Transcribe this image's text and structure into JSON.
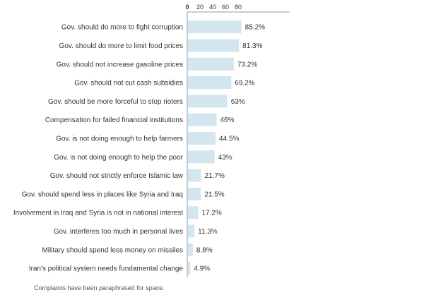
{
  "chart_data": {
    "type": "bar",
    "orientation": "horizontal",
    "categories": [
      "Gov. should do more to fight corruption",
      "Gov. should do more to limit food prices",
      "Gov. should not increase gasoline prices",
      "Gov. should not cut cash subsidies",
      "Gov. should be more forceful to stop rioters",
      "Compensation for failed financial institutions",
      "Gov. is not doing enough to help farmers",
      "Gov. is not doing enough to help the poor",
      "Gov. should not strictly enforce Islamic law",
      "Gov. should spend less in places like Syria and Iraq",
      "Involvement in Iraq and Syria is not in national interest",
      "Gov. interferes too much in personal lives",
      "Military should spend less money on missiles",
      "Iran's political system needs fundamental change"
    ],
    "values": [
      85.2,
      81.3,
      73.2,
      69.2,
      63,
      46,
      44.5,
      43,
      21.7,
      21.5,
      17.2,
      11.3,
      8.8,
      4.9
    ],
    "value_labels": [
      "85.2%",
      "81.3%",
      "73.2%",
      "69.2%",
      "63%",
      "46%",
      "44.5%",
      "43%",
      "21.7%",
      "21.5%",
      "17.2%",
      "11.3%",
      "8.8%",
      "4.9%"
    ],
    "x_ticks": [
      0,
      20,
      40,
      60,
      80
    ],
    "xlim": [
      0,
      85
    ],
    "title": "",
    "xlabel": "",
    "ylabel": "",
    "grid": false,
    "bar_color": "#d3e6ef",
    "axis_color": "#999999"
  },
  "note": "Complaints have been paraphrased for space."
}
